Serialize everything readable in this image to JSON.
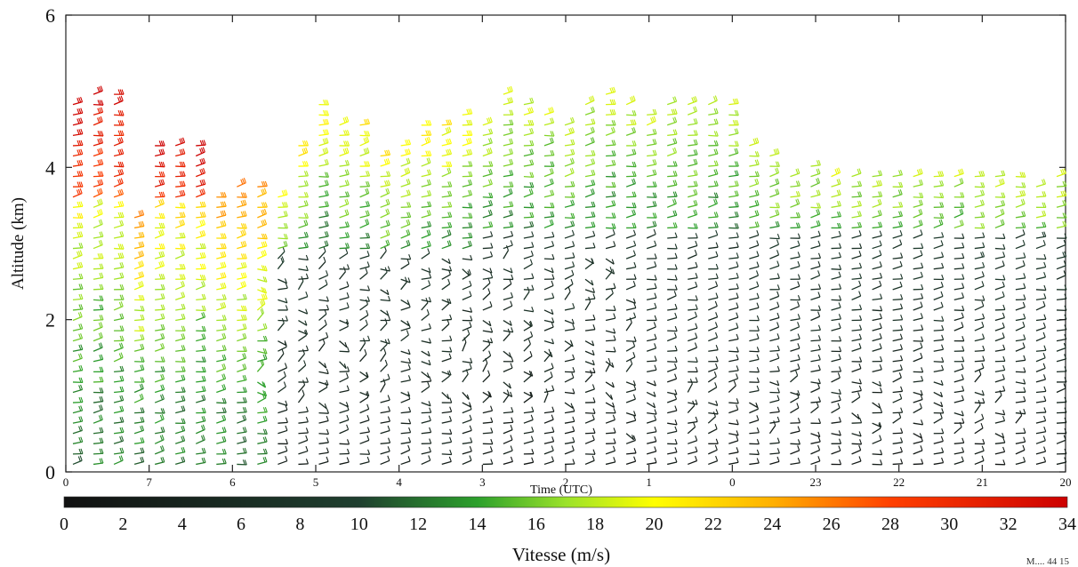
{
  "chart_data": {
    "type": "heatmap",
    "subtype": "wind-barb-time-height",
    "title": "",
    "xlabel": "Time (UTC)",
    "ylabel": "Altitude (km)",
    "xticks": [
      "0",
      "7",
      "6",
      "5",
      "4",
      "3",
      "2",
      "1",
      "0",
      "23",
      "22",
      "21",
      "20"
    ],
    "yticks": [
      0,
      2,
      4,
      6
    ],
    "ylim": [
      0,
      6
    ],
    "colorbar": {
      "label": "Vitesse (m/s)",
      "ticks": [
        0,
        2,
        4,
        6,
        8,
        10,
        12,
        14,
        16,
        18,
        20,
        22,
        24,
        26,
        28,
        30,
        32,
        34
      ],
      "range": [
        0,
        34
      ],
      "stops": [
        {
          "value": 0,
          "color": "#111111"
        },
        {
          "value": 10,
          "color": "#1f3f2f"
        },
        {
          "value": 14,
          "color": "#2ca02c"
        },
        {
          "value": 17,
          "color": "#9be22a"
        },
        {
          "value": 20,
          "color": "#ffff00"
        },
        {
          "value": 24,
          "color": "#ffb000"
        },
        {
          "value": 28,
          "color": "#ff4000"
        },
        {
          "value": 34,
          "color": "#cc0000"
        }
      ]
    },
    "profile_tops_km": [
      4.9,
      5.0,
      5.0,
      3.4,
      4.4,
      4.4,
      4.3,
      3.7,
      3.8,
      3.8,
      3.7,
      4.3,
      4.9,
      4.6,
      4.6,
      4.2,
      4.4,
      4.6,
      4.6,
      4.8,
      4.6,
      5.0,
      4.9,
      4.8,
      4.6,
      4.9,
      5.0,
      4.9,
      4.8,
      4.9,
      4.9,
      4.9,
      4.9,
      4.3,
      4.2,
      4.0,
      4.1,
      4.0,
      4.0,
      4.0,
      4.0,
      4.0,
      4.0,
      4.0,
      3.9,
      4.0,
      4.0,
      3.8,
      3.9
    ]
  },
  "footer_note": "M.... 44 15"
}
